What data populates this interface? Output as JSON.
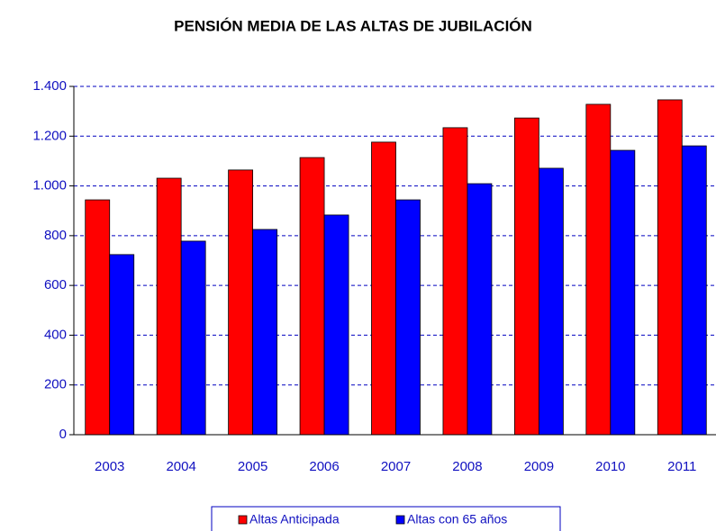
{
  "chart_data": {
    "type": "bar",
    "title": "PENSIÓN MEDIA DE LAS ALTAS DE JUBILACIÓN",
    "categories": [
      "2003",
      "2004",
      "2005",
      "2006",
      "2007",
      "2008",
      "2009",
      "2010",
      "2011"
    ],
    "series": [
      {
        "name": "Altas Anticipada",
        "color": "#ff0000",
        "values": [
          944,
          1031,
          1064,
          1114,
          1176,
          1234,
          1273,
          1328,
          1346
        ]
      },
      {
        "name": "Altas con 65 años",
        "color": "#0000ff",
        "values": [
          724,
          778,
          825,
          883,
          944,
          1009,
          1071,
          1143,
          1161
        ]
      }
    ],
    "ylim": [
      0,
      1400
    ],
    "yticks": [
      0,
      200,
      400,
      600,
      800,
      {
        "value": 1000,
        "label": "1.000"
      },
      {
        "value": 1200,
        "label": "1.200"
      },
      {
        "value": 1400,
        "label": "1.400"
      }
    ],
    "grid": true,
    "legend": "bottom"
  }
}
